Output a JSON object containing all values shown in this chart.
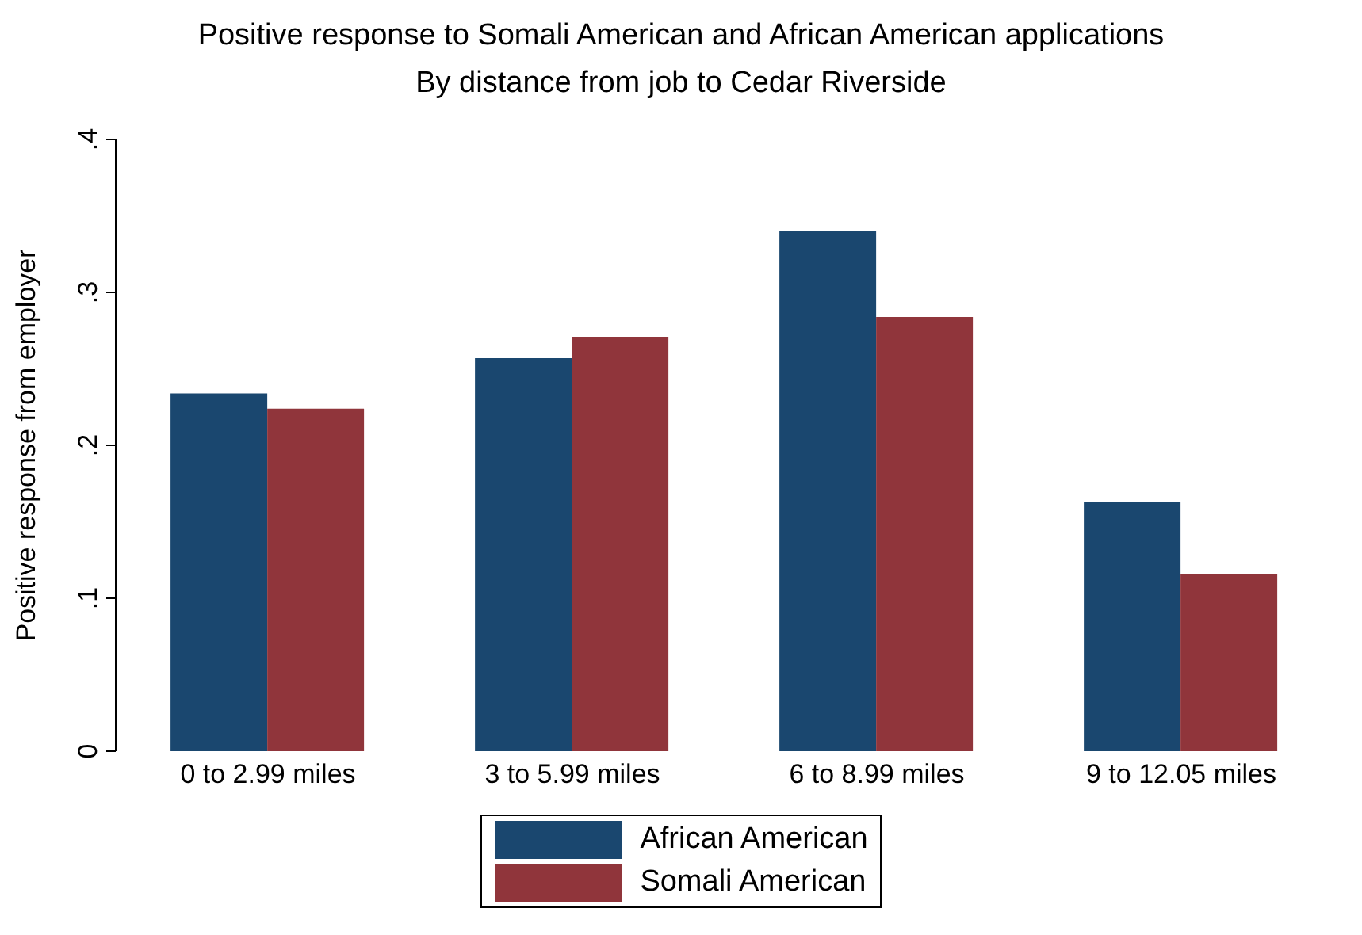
{
  "chart_data": {
    "type": "bar",
    "title": "Positive response to Somali American and African American applications",
    "subtitle": "By distance from job to Cedar Riverside",
    "ylabel": "Positive response from employer",
    "categories": [
      "0 to 2.99 miles",
      "3 to 5.99 miles",
      "6 to 8.99 miles",
      "9 to 12.05 miles"
    ],
    "series": [
      {
        "name": "African American",
        "color": "#1a476f",
        "values": [
          0.234,
          0.257,
          0.34,
          0.163
        ]
      },
      {
        "name": "Somali American",
        "color": "#90353b",
        "values": [
          0.224,
          0.271,
          0.284,
          0.116
        ]
      }
    ],
    "ylim": [
      0,
      0.4
    ],
    "yticks": [
      {
        "value": 0,
        "label": "0"
      },
      {
        "value": 0.1,
        "label": ".1"
      },
      {
        "value": 0.2,
        "label": ".2"
      },
      {
        "value": 0.3,
        "label": ".3"
      },
      {
        "value": 0.4,
        "label": ".4"
      }
    ],
    "grid": false,
    "legend": "bottom"
  }
}
